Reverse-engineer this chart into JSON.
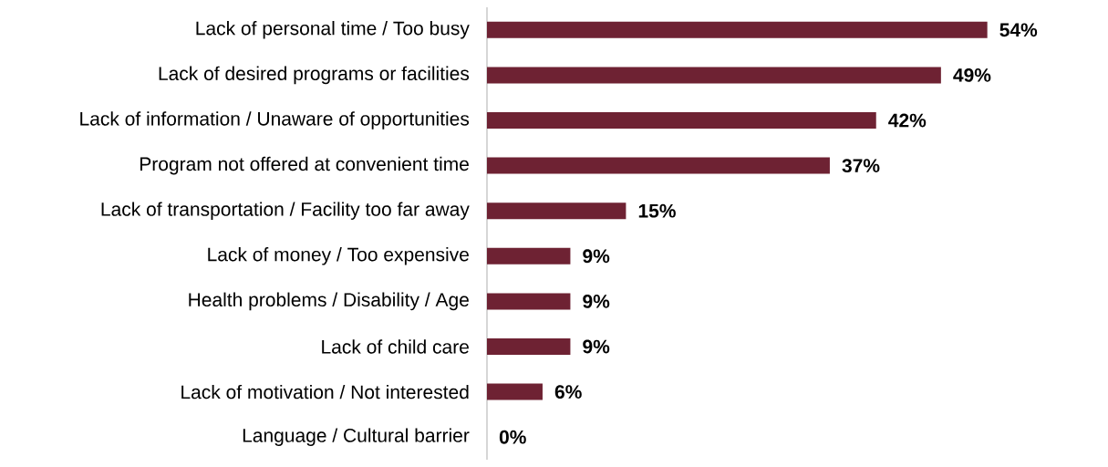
{
  "chart_data": {
    "type": "bar",
    "orientation": "horizontal",
    "categories": [
      "Lack of personal time / Too busy",
      "Lack of desired programs or facilities",
      "Lack of information / Unaware of opportunities",
      "Program not offered at convenient time",
      "Lack of transportation / Facility too far away",
      "Lack of money / Too expensive",
      "Health problems / Disability / Age",
      "Lack of child care",
      "Lack of motivation / Not interested",
      "Language / Cultural barrier"
    ],
    "values": [
      54,
      49,
      42,
      37,
      15,
      9,
      9,
      9,
      6,
      0
    ],
    "value_labels": [
      "54%",
      "49%",
      "42%",
      "37%",
      "15%",
      "9%",
      "9%",
      "9%",
      "6%",
      "0%"
    ],
    "color": "#6e2233"
  }
}
